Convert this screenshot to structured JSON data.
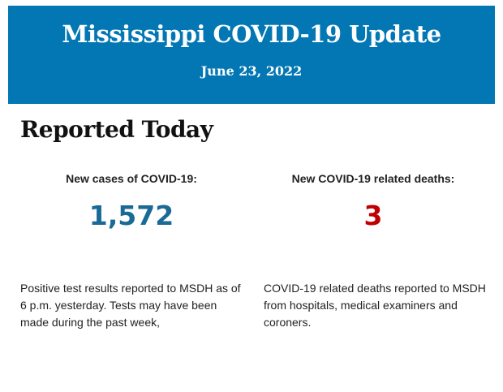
{
  "header": {
    "title": "Mississippi COVID-19 Update",
    "date": "June 23, 2022",
    "color": "#0277b4"
  },
  "section": {
    "heading": "Reported Today"
  },
  "cases": {
    "label": "New cases of COVID-19:",
    "value": "1,572",
    "color": "#1a6a96",
    "description": "Positive test results reported to MSDH as of 6 p.m. yesterday. Tests may have been made during the past week,"
  },
  "deaths": {
    "label": "New COVID-19 related deaths:",
    "value": "3",
    "color": "#c00000",
    "description": "COVID-19 related deaths reported to MSDH from hospitals, medical examiners and coroners."
  }
}
